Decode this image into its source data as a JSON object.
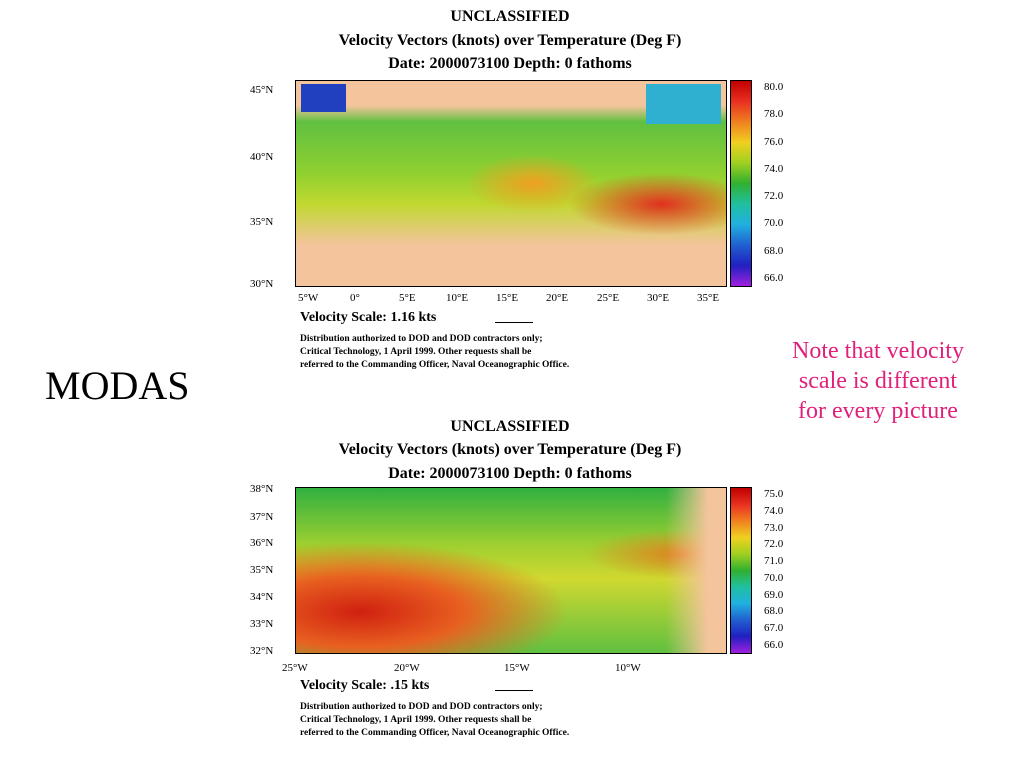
{
  "slide": {
    "title": "MODAS",
    "note": [
      "Note that velocity",
      "scale is different",
      "for every picture"
    ]
  },
  "figures": [
    {
      "header": [
        "UNCLASSIFIED",
        "Velocity Vectors (knots) over Temperature (Deg F)",
        "Date: 2000073100  Depth: 0 fathoms"
      ],
      "lat_labels": [
        "45°N",
        "40°N",
        "35°N",
        "30°N"
      ],
      "lon_labels": [
        "5°W",
        "0°",
        "5°E",
        "10°E",
        "15°E",
        "20°E",
        "25°E",
        "30°E",
        "35°E"
      ],
      "colorbar_labels": [
        "80.0",
        "78.0",
        "76.0",
        "74.0",
        "72.0",
        "70.0",
        "68.0",
        "66.0"
      ],
      "velocity_scale": "Velocity Scale:  1.16 kts",
      "distribution": [
        "Distribution authorized to DOD and DOD contractors only;",
        "Critical Technology, 1 April 1999.  Other requests shall be",
        "referred to the Commanding Officer, Naval Oceanographic Office."
      ]
    },
    {
      "header": [
        "UNCLASSIFIED",
        "Velocity Vectors (knots) over Temperature (Deg F)",
        "Date: 2000073100  Depth: 0 fathoms"
      ],
      "lat_labels": [
        "38°N",
        "37°N",
        "36°N",
        "35°N",
        "34°N",
        "33°N",
        "32°N"
      ],
      "lon_labels": [
        "25°W",
        "20°W",
        "15°W",
        "10°W"
      ],
      "colorbar_labels": [
        "75.0",
        "74.0",
        "73.0",
        "72.0",
        "71.0",
        "70.0",
        "69.0",
        "68.0",
        "67.0",
        "66.0"
      ],
      "velocity_scale": "Velocity Scale:  .15 kts",
      "distribution": [
        "Distribution authorized to DOD and DOD contractors only;",
        "Critical Technology, 1 April 1999.  Other requests shall be",
        "referred to the Commanding Officer, Naval Oceanographic Office."
      ]
    }
  ]
}
